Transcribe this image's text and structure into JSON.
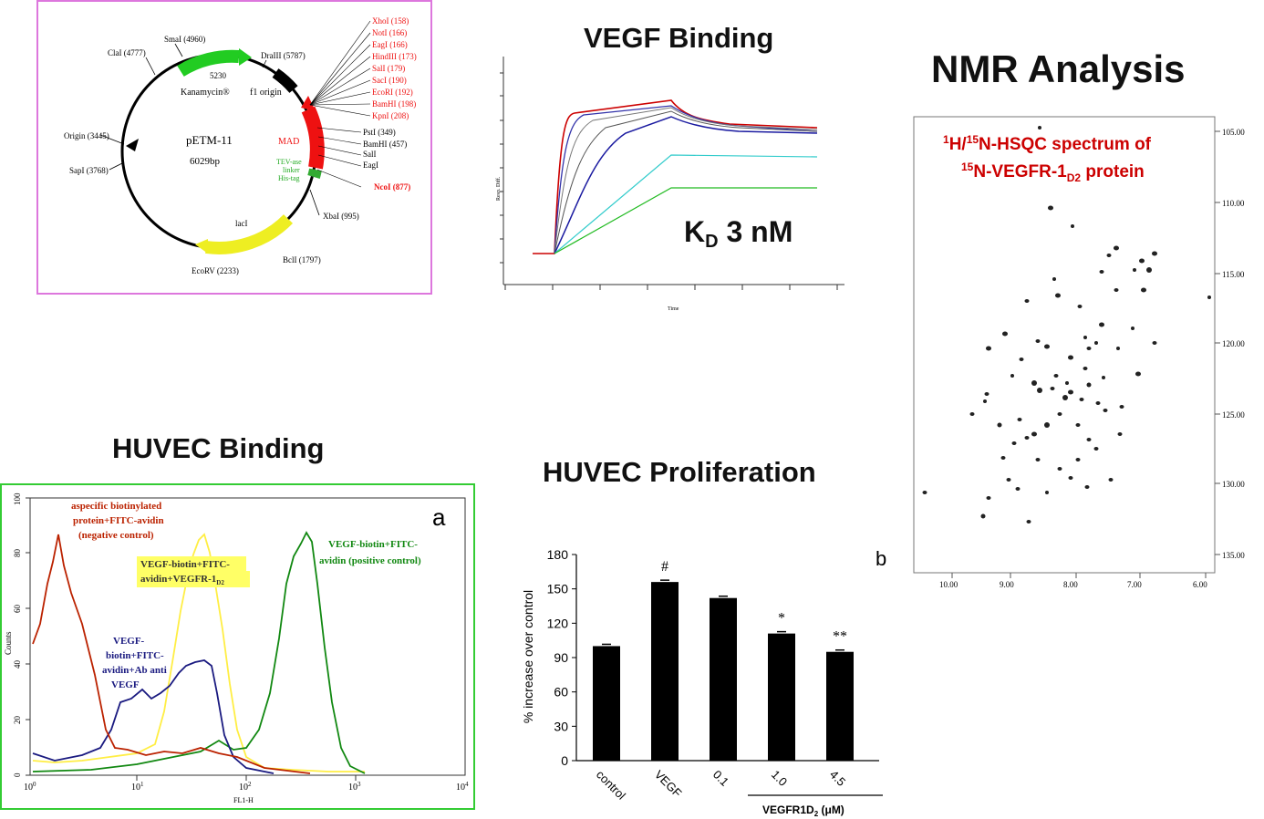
{
  "titles": {
    "vegf": "VEGF Binding",
    "nmr": "NMR Analysis",
    "huvec_binding": "HUVEC Binding",
    "huvec_prolif": "HUVEC Proliferation"
  },
  "plasmid": {
    "name": "pETM-11",
    "size": "6029bp",
    "top_num": "5230",
    "genes": {
      "kan": "Kanamycin®",
      "f1": "f1 origin",
      "mad": "MAD",
      "tev1": "TEV-ase",
      "tev2": "linker",
      "his": "His-tag",
      "laci": "lacI"
    },
    "sites_left": [
      "SmaI (4960)",
      "ClaI (4777)",
      "DraIII (5787)",
      "Origin (3445)",
      "SapI (3768)",
      "EcoRV (2233)",
      "BclI (1797)",
      "XbaI (995)"
    ],
    "sites_red": [
      "XhoI (158)",
      "NotI (166)",
      "EagI (166)",
      "HindIII (173)",
      "SalI (179)",
      "SacI (190)",
      "EcoRI (192)",
      "BamHI (198)",
      "KpnI (208)"
    ],
    "sites_right": [
      "PstI (349)",
      "BamHI (457)",
      "SalI",
      "EagI"
    ],
    "nco": "NcoI (877)"
  },
  "vegf_binding": {
    "kd_prefix": "K",
    "kd_sub": "D",
    "kd_value": " 3 nM",
    "ylabel": "Resp. Diff.",
    "xlabel": "Time",
    "colors": [
      "#cc0000",
      "#3333aa",
      "#777777",
      "#555555",
      "#1a1aa0",
      "#33cccc",
      "#22bb22"
    ]
  },
  "nmr": {
    "label_line1_a": "1",
    "label_line1_b": "H/",
    "label_line1_c": "15",
    "label_line1_d": "N-HSQC spectrum of",
    "label_line2_a": "15",
    "label_line2_b": "N-VEGFR-1",
    "label_line2_c": "D2",
    "label_line2_d": " protein",
    "y_ticks": [
      "105.00",
      "110.00",
      "115.00",
      "120.00",
      "125.00",
      "130.00",
      "135.00"
    ],
    "x_ticks": [
      "10.00",
      "9.00",
      "8.00",
      "7.00",
      "6.00"
    ]
  },
  "huvec_binding": {
    "panel_letter": "a",
    "ylabel": "Counts",
    "xlabel": "FL1-H",
    "y_ticks": [
      "0",
      "20",
      "40",
      "60",
      "80",
      "100"
    ],
    "x_ticks": [
      "10",
      "10",
      "10",
      "10",
      "10"
    ],
    "x_exp": [
      "0",
      "1",
      "2",
      "3",
      "4"
    ],
    "labels": {
      "red1": "aspecific biotinylated",
      "red2": "protein+FITC-avidin",
      "red3": "(negative control)",
      "yellow1": "VEGF-biotin+FITC-",
      "yellow2": "avidin+VEGFR-1",
      "yellow_sub": "D2",
      "blue1": "VEGF-",
      "blue2": "biotin+FITC-",
      "blue3": "avidin+Ab anti",
      "blue4": "VEGF",
      "green1": "VEGF-biotin+FITC-",
      "green2": "avidin (positive control)"
    },
    "colors": {
      "red": "#bb2200",
      "yellow": "#ffee44",
      "blue": "#1a1a80",
      "green": "#118811"
    }
  },
  "huvec_prolif": {
    "panel_letter": "b",
    "ylabel": "% increase over control",
    "group_label": "VEGFR1D",
    "group_sub": "2",
    "group_unit": " (μM)",
    "y_ticks": [
      "0",
      "30",
      "60",
      "90",
      "120",
      "150",
      "180"
    ],
    "annotations": [
      "",
      "#",
      "",
      "*",
      "**"
    ]
  },
  "chart_data": [
    {
      "type": "bar",
      "title": "HUVEC Proliferation",
      "categories": [
        "control",
        "VEGF",
        "0.1",
        "1.0",
        "4.5"
      ],
      "values": [
        100,
        156,
        142,
        111,
        95
      ],
      "ylabel": "% increase over control",
      "ylim": [
        0,
        180
      ]
    }
  ]
}
